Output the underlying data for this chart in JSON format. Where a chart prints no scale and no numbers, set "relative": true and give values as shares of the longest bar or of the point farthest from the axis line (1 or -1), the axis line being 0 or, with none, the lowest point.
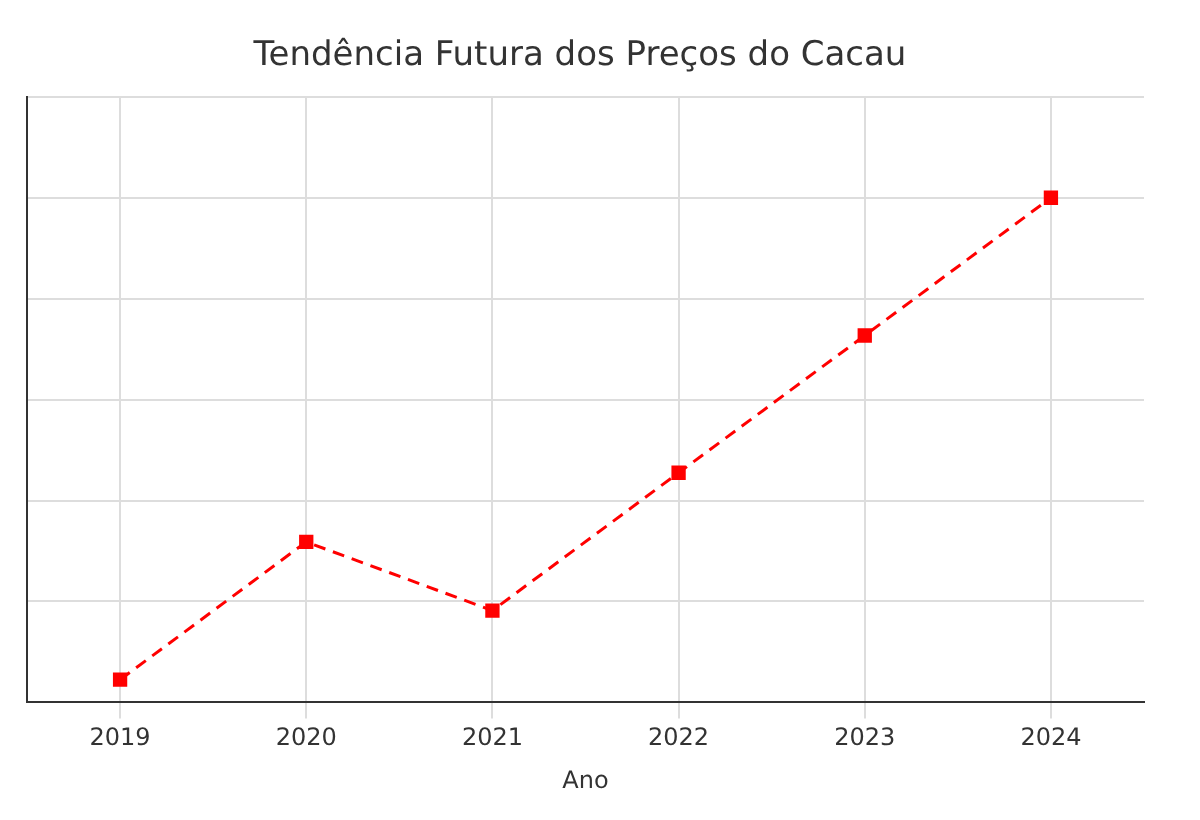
{
  "chart_data": {
    "type": "line",
    "title": "Tendência Futura dos Preços do Cacau",
    "xlabel": "Ano",
    "relative": true,
    "categories": [
      "2019",
      "2020",
      "2021",
      "2022",
      "2023",
      "2024"
    ],
    "series": [
      {
        "color": "#ff0000",
        "values": [
          0.045,
          0.318,
          0.182,
          0.455,
          0.727,
          1
        ]
      }
    ],
    "marker": "square",
    "line_style": "dashed",
    "grid": true,
    "legend": false
  }
}
